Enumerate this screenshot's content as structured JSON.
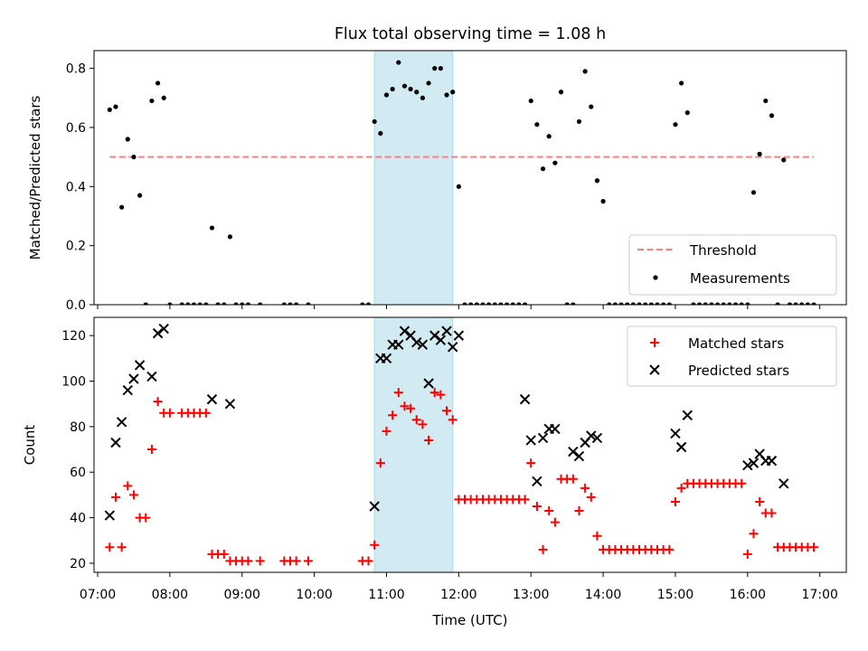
{
  "title": "Flux total observing time = 1.08 h",
  "chart_data": [
    {
      "type": "scatter",
      "panel": "top",
      "ylabel": "Matched/Predicted stars",
      "ylim": [
        0,
        0.86
      ],
      "yticks": [
        0.0,
        0.2,
        0.4,
        0.6,
        0.8
      ],
      "ytick_labels": [
        "0.0",
        "0.2",
        "0.4",
        "0.6",
        "0.8"
      ],
      "legend_position": "lower-right",
      "threshold": {
        "name": "Threshold",
        "y": 0.5,
        "x_start": "07:10",
        "x_end": "16:55",
        "color": "#ff7f7f"
      },
      "series": [
        {
          "name": "Measurements",
          "color": "#000000",
          "x": [
            "07:10",
            "07:15",
            "07:20",
            "07:25",
            "07:30",
            "07:35",
            "07:40",
            "07:45",
            "07:50",
            "07:55",
            "08:00",
            "08:10",
            "08:15",
            "08:20",
            "08:25",
            "08:30",
            "08:35",
            "08:40",
            "08:45",
            "08:50",
            "08:55",
            "09:00",
            "09:05",
            "09:15",
            "09:35",
            "09:40",
            "09:45",
            "09:55",
            "10:40",
            "10:45",
            "10:50",
            "10:55",
            "11:00",
            "11:05",
            "11:10",
            "11:15",
            "11:20",
            "11:25",
            "11:30",
            "11:35",
            "11:40",
            "11:45",
            "11:50",
            "11:55",
            "12:00",
            "12:05",
            "12:10",
            "12:15",
            "12:20",
            "12:25",
            "12:30",
            "12:35",
            "12:40",
            "12:45",
            "12:50",
            "12:55",
            "13:00",
            "13:05",
            "13:10",
            "13:15",
            "13:20",
            "13:25",
            "13:30",
            "13:35",
            "13:40",
            "13:45",
            "13:50",
            "13:55",
            "14:00",
            "14:05",
            "14:10",
            "14:15",
            "14:20",
            "14:25",
            "14:30",
            "14:35",
            "14:40",
            "14:45",
            "14:50",
            "14:55",
            "15:00",
            "15:05",
            "15:10",
            "15:15",
            "15:20",
            "15:25",
            "15:30",
            "15:35",
            "15:40",
            "15:45",
            "15:50",
            "15:55",
            "16:00",
            "16:05",
            "16:10",
            "16:15",
            "16:20",
            "16:25",
            "16:30",
            "16:35",
            "16:40",
            "16:45",
            "16:50",
            "16:55"
          ],
          "y": [
            0.66,
            0.67,
            0.33,
            0.56,
            0.5,
            0.37,
            0.0,
            0.69,
            0.75,
            0.7,
            0.0,
            0.0,
            0.0,
            0.0,
            0.0,
            0.0,
            0.26,
            0.0,
            0.0,
            0.23,
            0.0,
            0.0,
            0.0,
            0.0,
            0.0,
            0.0,
            0.0,
            0.0,
            0.0,
            0.0,
            0.62,
            0.58,
            0.71,
            0.73,
            0.82,
            0.74,
            0.73,
            0.72,
            0.7,
            0.75,
            0.8,
            0.8,
            0.71,
            0.72,
            0.4,
            0.0,
            0.0,
            0.0,
            0.0,
            0.0,
            0.0,
            0.0,
            0.0,
            0.0,
            0.0,
            0.0,
            0.69,
            0.61,
            0.46,
            0.57,
            0.48,
            0.72,
            0.0,
            0.0,
            0.62,
            0.79,
            0.67,
            0.42,
            0.35,
            0.0,
            0.0,
            0.0,
            0.0,
            0.0,
            0.0,
            0.0,
            0.0,
            0.0,
            0.0,
            0.0,
            0.61,
            0.75,
            0.65,
            0.0,
            0.0,
            0.0,
            0.0,
            0.0,
            0.0,
            0.0,
            0.0,
            0.0,
            0.0,
            0.38,
            0.51,
            0.69,
            0.64,
            0.0,
            0.49,
            0.0,
            0.0,
            0.0,
            0.0,
            0.0
          ]
        }
      ]
    },
    {
      "type": "scatter",
      "panel": "bottom",
      "ylabel": "Count",
      "xlabel": "Time (UTC)",
      "ylim": [
        16,
        128
      ],
      "yticks": [
        20,
        40,
        60,
        80,
        100,
        120
      ],
      "ytick_labels": [
        "20",
        "40",
        "60",
        "80",
        "100",
        "120"
      ],
      "xlim": [
        "06:57",
        "17:22"
      ],
      "xticks": [
        "07:00",
        "08:00",
        "09:00",
        "10:00",
        "11:00",
        "12:00",
        "13:00",
        "14:00",
        "15:00",
        "16:00",
        "17:00"
      ],
      "legend_position": "upper-right",
      "series": [
        {
          "name": "Matched stars",
          "marker": "plus",
          "color": "#ff0000",
          "x": [
            "07:10",
            "07:15",
            "07:20",
            "07:25",
            "07:30",
            "07:35",
            "07:40",
            "07:45",
            "07:50",
            "07:55",
            "08:00",
            "08:10",
            "08:15",
            "08:20",
            "08:25",
            "08:30",
            "08:35",
            "08:40",
            "08:45",
            "08:50",
            "08:55",
            "09:00",
            "09:05",
            "09:15",
            "09:35",
            "09:40",
            "09:45",
            "09:55",
            "10:40",
            "10:45",
            "10:50",
            "10:55",
            "11:00",
            "11:05",
            "11:10",
            "11:15",
            "11:20",
            "11:25",
            "11:30",
            "11:35",
            "11:40",
            "11:45",
            "11:50",
            "11:55",
            "12:00",
            "12:05",
            "12:10",
            "12:15",
            "12:20",
            "12:25",
            "12:30",
            "12:35",
            "12:40",
            "12:45",
            "12:50",
            "12:55",
            "13:00",
            "13:05",
            "13:10",
            "13:15",
            "13:20",
            "13:25",
            "13:30",
            "13:35",
            "13:40",
            "13:45",
            "13:50",
            "13:55",
            "14:00",
            "14:05",
            "14:10",
            "14:15",
            "14:20",
            "14:25",
            "14:30",
            "14:35",
            "14:40",
            "14:45",
            "14:50",
            "14:55",
            "15:00",
            "15:05",
            "15:10",
            "15:15",
            "15:20",
            "15:25",
            "15:30",
            "15:35",
            "15:40",
            "15:45",
            "15:50",
            "15:55",
            "16:00",
            "16:05",
            "16:10",
            "16:15",
            "16:20",
            "16:25",
            "16:30",
            "16:35",
            "16:40",
            "16:45",
            "16:50",
            "16:55"
          ],
          "y": [
            27,
            49,
            27,
            54,
            50,
            40,
            40,
            70,
            91,
            86,
            86,
            86,
            86,
            86,
            86,
            86,
            24,
            24,
            24,
            21,
            21,
            21,
            21,
            21,
            21,
            21,
            21,
            21,
            21,
            21,
            28,
            64,
            78,
            85,
            95,
            89,
            88,
            83,
            81,
            74,
            95,
            94,
            87,
            83,
            48,
            48,
            48,
            48,
            48,
            48,
            48,
            48,
            48,
            48,
            48,
            48,
            64,
            45,
            26,
            43,
            38,
            57,
            57,
            57,
            43,
            53,
            49,
            32,
            26,
            26,
            26,
            26,
            26,
            26,
            26,
            26,
            26,
            26,
            26,
            26,
            47,
            53,
            55,
            55,
            55,
            55,
            55,
            55,
            55,
            55,
            55,
            55,
            24,
            33,
            47,
            42,
            42,
            27,
            27,
            27,
            27,
            27,
            27,
            27
          ]
        },
        {
          "name": "Predicted stars",
          "marker": "x",
          "color": "#000000",
          "x": [
            "07:10",
            "07:15",
            "07:20",
            "07:25",
            "07:30",
            "07:35",
            "07:45",
            "07:50",
            "07:55",
            "08:35",
            "08:50",
            "10:50",
            "10:55",
            "11:00",
            "11:05",
            "11:10",
            "11:15",
            "11:20",
            "11:25",
            "11:30",
            "11:35",
            "11:40",
            "11:45",
            "11:50",
            "11:55",
            "12:00",
            "12:55",
            "13:00",
            "13:05",
            "13:10",
            "13:15",
            "13:20",
            "13:35",
            "13:40",
            "13:45",
            "13:50",
            "13:55",
            "15:00",
            "15:05",
            "15:10",
            "16:00",
            "16:05",
            "16:10",
            "16:15",
            "16:20",
            "16:30"
          ],
          "y": [
            41,
            73,
            82,
            96,
            101,
            107,
            102,
            121,
            123,
            92,
            90,
            45,
            110,
            110,
            116,
            116,
            122,
            120,
            117,
            116,
            99,
            120,
            118,
            122,
            115,
            120,
            92,
            74,
            56,
            75,
            79,
            79,
            69,
            67,
            73,
            76,
            75,
            77,
            71,
            85,
            63,
            64,
            68,
            65,
            65,
            55
          ]
        }
      ]
    }
  ],
  "shaded_window": {
    "start": "10:50",
    "end": "11:55",
    "color": "#add8e6"
  }
}
